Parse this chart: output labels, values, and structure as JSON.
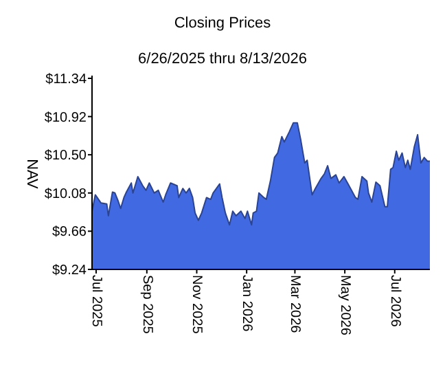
{
  "chart_data": {
    "type": "area",
    "title": "Closing Prices",
    "subtitle": "6/26/2025 thru 8/13/2026",
    "ylabel": "NAV",
    "x": [
      "2025-06-26",
      "2025-06-30",
      "2025-07-07",
      "2025-07-14",
      "2025-07-16",
      "2025-07-21",
      "2025-07-24",
      "2025-07-28",
      "2025-07-31",
      "2025-08-04",
      "2025-08-07",
      "2025-08-13",
      "2025-08-15",
      "2025-08-21",
      "2025-08-27",
      "2025-08-31",
      "2025-09-04",
      "2025-09-10",
      "2025-09-15",
      "2025-09-21",
      "2025-09-24",
      "2025-09-30",
      "2025-10-08",
      "2025-10-10",
      "2025-10-15",
      "2025-10-19",
      "2025-10-23",
      "2025-10-27",
      "2025-10-30",
      "2025-11-03",
      "2025-11-07",
      "2025-11-13",
      "2025-11-18",
      "2025-11-21",
      "2025-11-29",
      "2025-12-02",
      "2025-12-06",
      "2025-12-11",
      "2025-12-15",
      "2025-12-19",
      "2025-12-25",
      "2025-12-30",
      "2026-01-02",
      "2026-01-07",
      "2026-01-09",
      "2026-01-13",
      "2026-01-16",
      "2026-01-22",
      "2026-01-25",
      "2026-01-30",
      "2026-02-04",
      "2026-02-08",
      "2026-02-13",
      "2026-02-16",
      "2026-02-22",
      "2026-02-27",
      "2026-03-04",
      "2026-03-08",
      "2026-03-13",
      "2026-03-16",
      "2026-03-22",
      "2026-03-26",
      "2026-04-02",
      "2026-04-06",
      "2026-04-10",
      "2026-04-14",
      "2026-04-20",
      "2026-04-24",
      "2026-04-30",
      "2026-05-08",
      "2026-05-14",
      "2026-05-17",
      "2026-05-22",
      "2026-05-28",
      "2026-05-30",
      "2026-06-03",
      "2026-06-08",
      "2026-06-13",
      "2026-06-19",
      "2026-06-22",
      "2026-06-26",
      "2026-06-29",
      "2026-07-03",
      "2026-07-06",
      "2026-07-10",
      "2026-07-14",
      "2026-07-17",
      "2026-07-20",
      "2026-07-25",
      "2026-07-29",
      "2026-08-02",
      "2026-08-06",
      "2026-08-10",
      "2026-08-13"
    ],
    "series": [
      {
        "color": "#4169e1",
        "values": [
          9.88,
          10.06,
          9.97,
          9.96,
          9.83,
          10.09,
          10.08,
          9.99,
          9.91,
          10.03,
          10.09,
          10.19,
          10.08,
          10.26,
          10.16,
          10.11,
          10.19,
          10.08,
          10.11,
          9.98,
          10.06,
          10.19,
          10.16,
          10.03,
          10.13,
          10.08,
          10.13,
          10.03,
          9.86,
          9.78,
          9.86,
          10.03,
          10.01,
          10.08,
          10.18,
          10.03,
          9.86,
          9.73,
          9.88,
          9.83,
          9.88,
          9.8,
          9.88,
          9.73,
          9.86,
          9.88,
          10.08,
          10.03,
          10.01,
          10.21,
          10.47,
          10.52,
          10.7,
          10.64,
          10.75,
          10.85,
          10.85,
          10.67,
          10.41,
          10.44,
          10.06,
          10.13,
          10.24,
          10.29,
          10.38,
          10.24,
          10.28,
          10.19,
          10.26,
          10.13,
          10.03,
          10.01,
          10.26,
          10.21,
          10.08,
          9.98,
          10.2,
          10.16,
          9.93,
          9.93,
          10.34,
          10.36,
          10.54,
          10.44,
          10.52,
          10.36,
          10.44,
          10.34,
          10.59,
          10.72,
          10.41,
          10.47,
          10.43,
          10.43
        ]
      }
    ],
    "xlim": [
      "2025-06-26",
      "2026-08-13"
    ],
    "xticks": [
      {
        "value": "2025-07-01",
        "label": "Jul 2025"
      },
      {
        "value": "2025-09-01",
        "label": "Sep 2025"
      },
      {
        "value": "2025-11-01",
        "label": "Nov 2025"
      },
      {
        "value": "2026-01-01",
        "label": "Jan 2026"
      },
      {
        "value": "2026-03-01",
        "label": "Mar 2026"
      },
      {
        "value": "2026-05-01",
        "label": "May 2026"
      },
      {
        "value": "2026-07-01",
        "label": "Jul 2026"
      }
    ],
    "ylim": [
      9.24,
      11.34
    ],
    "yticks": [
      {
        "value": 9.24,
        "label": "$9.24"
      },
      {
        "value": 9.66,
        "label": "$9.66"
      },
      {
        "value": 10.08,
        "label": "$10.08"
      },
      {
        "value": 10.5,
        "label": "$10.50"
      },
      {
        "value": 10.92,
        "label": "$10.92"
      },
      {
        "value": 11.34,
        "label": "$11.34"
      }
    ]
  }
}
